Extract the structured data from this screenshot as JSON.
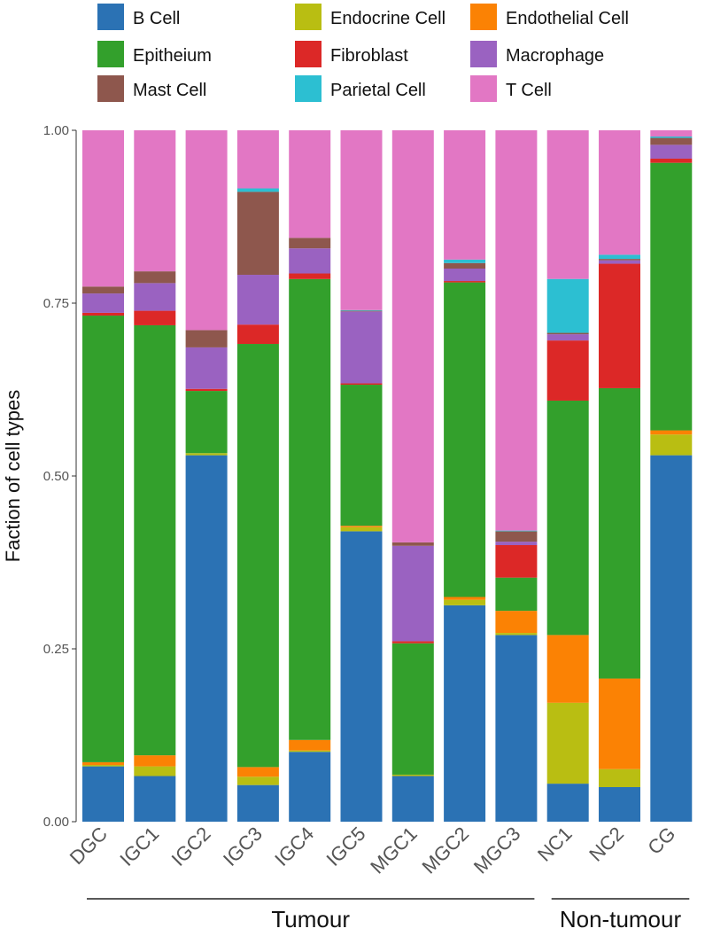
{
  "chart_data": {
    "type": "bar",
    "stacked": true,
    "ylabel": "Faction of cell types",
    "ylim": [
      0,
      1
    ],
    "yticks": [
      "0.00",
      "0.25",
      "0.50",
      "0.75",
      "1.00"
    ],
    "grid": false,
    "legend_position": "top",
    "categories": [
      "DGC",
      "IGC1",
      "IGC2",
      "IGC3",
      "IGC4",
      "IGC5",
      "MGC1",
      "MGC2",
      "MGC3",
      "NC1",
      "NC2",
      "CG"
    ],
    "groups": [
      {
        "label": "Tumour",
        "categories": [
          "DGC",
          "IGC1",
          "IGC2",
          "IGC3",
          "IGC4",
          "IGC5",
          "MGC1",
          "MGC2",
          "MGC3"
        ]
      },
      {
        "label": "Non-tumour",
        "categories": [
          "NC1",
          "NC2",
          "CG"
        ]
      }
    ],
    "series": [
      {
        "name": "B Cell",
        "color": "#2b72b4",
        "values": [
          0.08,
          0.066,
          0.53,
          0.053,
          0.1,
          0.42,
          0.066,
          0.313,
          0.27,
          0.055,
          0.05,
          0.53
        ]
      },
      {
        "name": "Endocrine Cell",
        "color": "#b9be12",
        "values": [
          0.002,
          0.014,
          0.003,
          0.012,
          0.002,
          0.006,
          0.002,
          0.008,
          0.003,
          0.117,
          0.026,
          0.03
        ]
      },
      {
        "name": "Endothelial Cell",
        "color": "#fb8204",
        "values": [
          0.004,
          0.016,
          0.0,
          0.014,
          0.015,
          0.002,
          0.0,
          0.004,
          0.032,
          0.098,
          0.131,
          0.006
        ]
      },
      {
        "name": "Epitheium",
        "color": "#33a02c",
        "values": [
          0.646,
          0.622,
          0.09,
          0.612,
          0.66,
          0.204,
          0.19,
          0.455,
          0.048,
          0.339,
          0.42,
          0.387
        ]
      },
      {
        "name": "Fibroblast",
        "color": "#dc2827",
        "values": [
          0.004,
          0.021,
          0.003,
          0.028,
          0.008,
          0.002,
          0.003,
          0.002,
          0.047,
          0.087,
          0.18,
          0.006
        ]
      },
      {
        "name": "Macrophage",
        "color": "#9a62c1",
        "values": [
          0.028,
          0.04,
          0.06,
          0.072,
          0.036,
          0.104,
          0.138,
          0.018,
          0.005,
          0.009,
          0.005,
          0.02
        ]
      },
      {
        "name": "Mast Cell",
        "color": "#8e574d",
        "values": [
          0.01,
          0.017,
          0.025,
          0.12,
          0.015,
          0.001,
          0.005,
          0.008,
          0.015,
          0.002,
          0.002,
          0.01
        ]
      },
      {
        "name": "Parietal Cell",
        "color": "#2cbfd2",
        "values": [
          0.0,
          0.0,
          0.0,
          0.005,
          0.0,
          0.001,
          0.0,
          0.005,
          0.001,
          0.078,
          0.006,
          0.002
        ]
      },
      {
        "name": "T Cell",
        "color": "#e277c4",
        "values": [
          0.226,
          0.204,
          0.289,
          0.084,
          0.154,
          0.26,
          0.596,
          0.187,
          0.579,
          0.215,
          0.18,
          0.009
        ]
      }
    ]
  }
}
